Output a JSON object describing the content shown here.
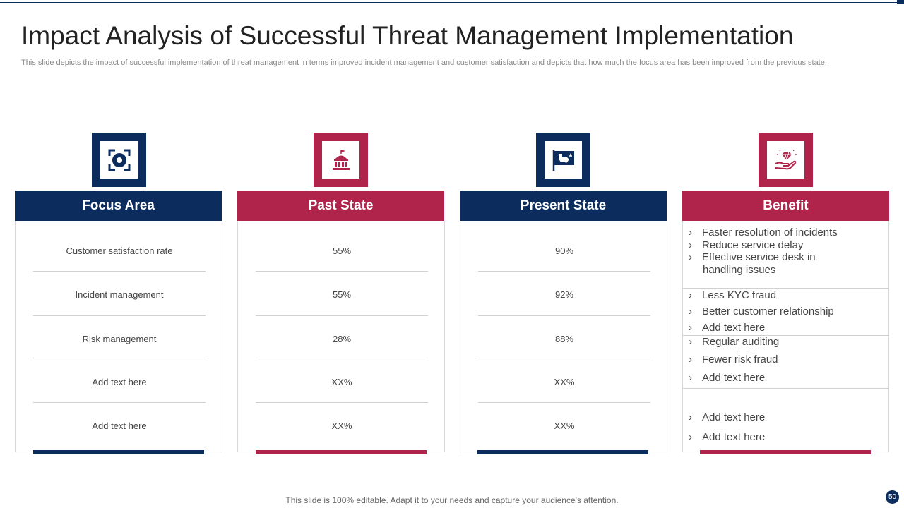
{
  "header": {
    "title": "Impact Analysis of Successful Threat Management Implementation",
    "subtitle": "This slide depicts the impact of successful implementation of threat management in terms improved incident management and customer satisfaction and depicts that how much the focus area has been improved from the previous state."
  },
  "colors": {
    "navy": "#0b2c5c",
    "crimson": "#b0244b"
  },
  "columns": [
    {
      "heading": "Focus Area",
      "icon": "target-icon",
      "rows": [
        "Customer satisfaction rate",
        "Incident management",
        "Risk management",
        "Add text here",
        "Add text here"
      ]
    },
    {
      "heading": "Past State",
      "icon": "government-building-icon",
      "rows": [
        "55%",
        "55%",
        "28%",
        "XX%",
        "XX%"
      ]
    },
    {
      "heading": "Present State",
      "icon": "map-flag-icon",
      "rows": [
        "90%",
        "92%",
        "88%",
        "XX%",
        "XX%"
      ]
    },
    {
      "heading": "Benefit",
      "icon": "diamond-in-hand-icon"
    }
  ],
  "benefits": [
    {
      "items": [
        "Faster resolution of incidents",
        "Reduce service delay",
        "Effective service desk in",
        "handling issues"
      ]
    },
    {
      "items": [
        "Less KYC fraud",
        "Better customer relationship",
        "Add text here"
      ]
    },
    {
      "items": [
        "Regular auditing",
        "Fewer risk fraud",
        "Add text here"
      ]
    },
    {
      "items": [
        "Add text here",
        "Add text here"
      ]
    }
  ],
  "footer": {
    "note": "This slide is 100% editable. Adapt it to your needs and capture your audience's attention.",
    "page_number": "50"
  }
}
